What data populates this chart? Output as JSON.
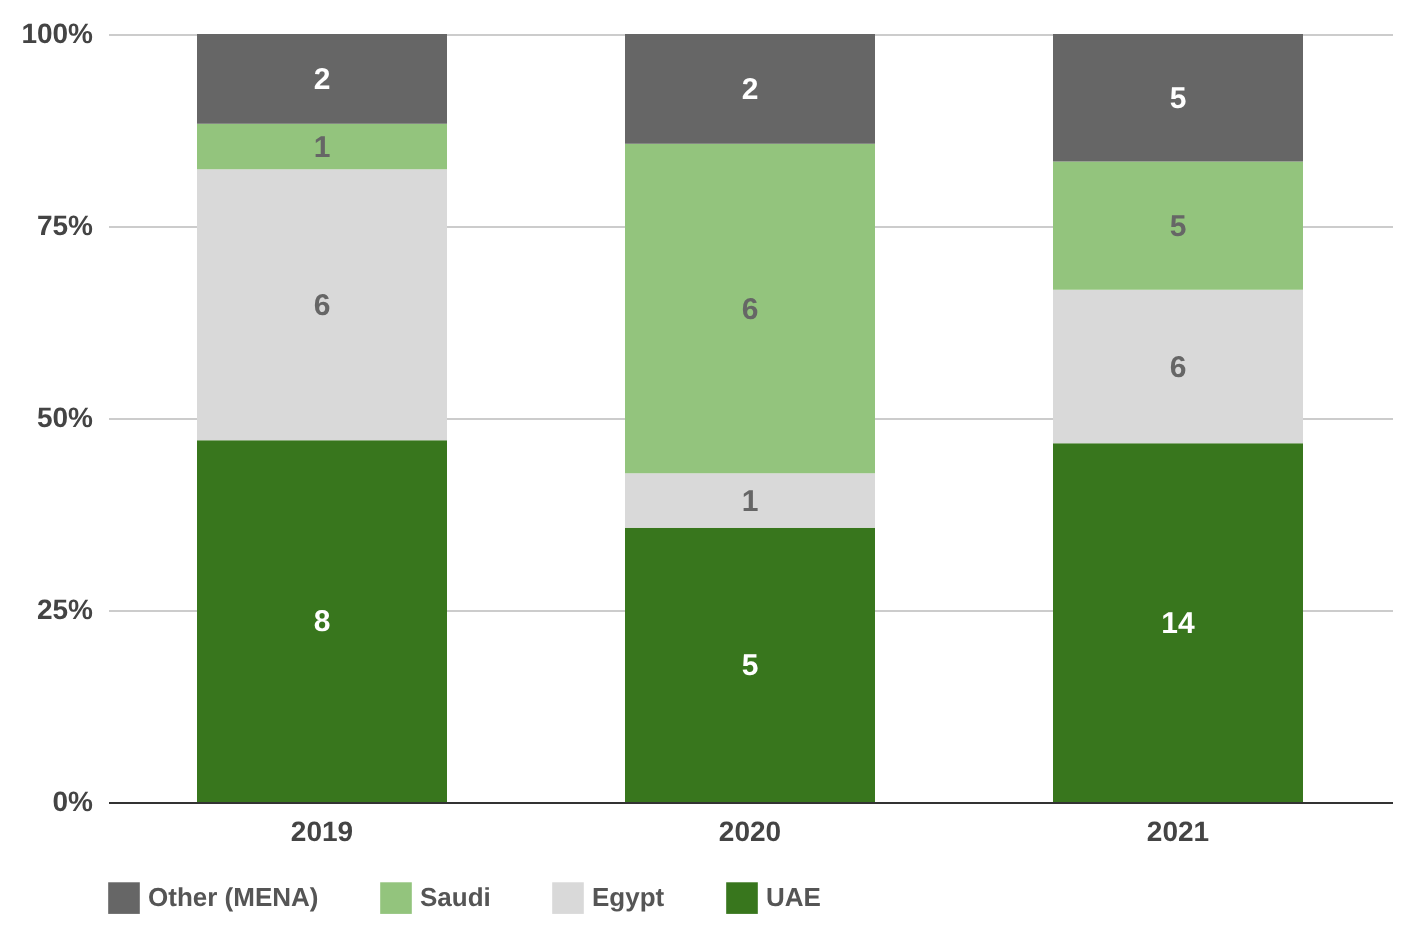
{
  "chart_data": {
    "type": "bar",
    "stacked": true,
    "categories": [
      "2019",
      "2020",
      "2021"
    ],
    "series": [
      {
        "name": "UAE",
        "color": "#38761d",
        "values": [
          47.1,
          35.7,
          46.7
        ]
      },
      {
        "name": "Egypt",
        "color": "#d9d9d9",
        "values": [
          35.3,
          7.1,
          20.0
        ]
      },
      {
        "name": "Saudi",
        "color": "#93c47d",
        "values": [
          5.9,
          42.9,
          16.7
        ]
      },
      {
        "name": "Other (MENA)",
        "color": "#666666",
        "values": [
          11.7,
          14.3,
          16.6
        ]
      }
    ],
    "annotations": [
      "8",
      "6",
      "1",
      "2",
      "5",
      "1",
      "6",
      "2",
      "14",
      "6",
      "5",
      "5"
    ],
    "ylim": [
      0,
      100
    ],
    "yticks": [
      {
        "value": 0,
        "label": "0%"
      },
      {
        "value": 25,
        "label": "25%"
      },
      {
        "value": 50,
        "label": "50%"
      },
      {
        "value": 75,
        "label": "75%"
      },
      {
        "value": 100,
        "label": "100%"
      }
    ],
    "grid": "y",
    "legend": "bottom"
  }
}
